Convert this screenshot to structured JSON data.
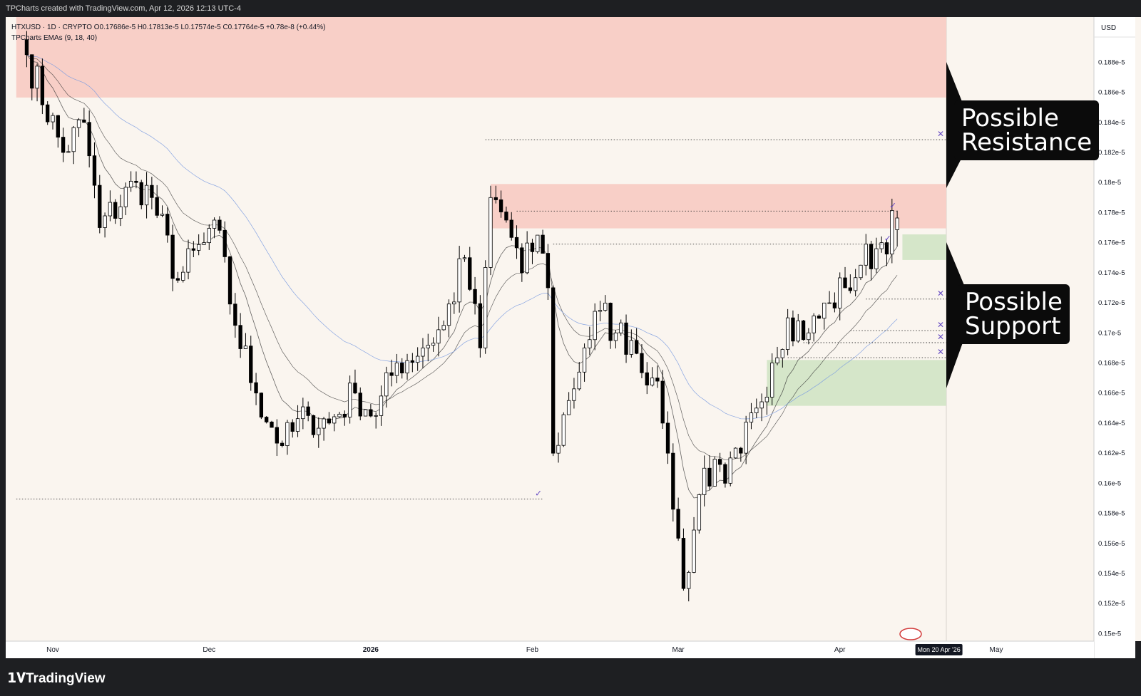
{
  "header": {
    "caption": "TPCharts created with TradingView.com, Apr 12, 2026 12:13 UTC-4"
  },
  "legend": {
    "symbol_line": "HTXUSD · 1D · CRYPTO  O0.17686e-5  H0.17813e-5  L0.17574e-5  C0.17764e-5  +0.78e-8 (+0.44%)",
    "indicator_line": "TPCharts EMAs (9, 18, 40)"
  },
  "price_axis": {
    "currency": "USD"
  },
  "time_axis": {
    "cursor_label": "Mon 20 Apr '26"
  },
  "annotations": {
    "resistance_label": [
      "Possible",
      "Resistance"
    ],
    "support_label": [
      "Possible",
      "Support"
    ]
  },
  "footer": {
    "brand": "TradingView",
    "logo_icon": "tradingview-logo-icon"
  },
  "colors": {
    "background": "#faf5ef",
    "bull": "#ffffff",
    "bear": "#000000",
    "resistance_zone": "#f8cfc7",
    "support_zone": "#d5e6c9",
    "ema_fast": "#333333",
    "ema_slow": "#7a9be0",
    "marker": "#6a4fc4"
  },
  "chart_data": {
    "type": "candlestick",
    "y_scale": "price x 1e5",
    "ylim": [
      0.1495,
      0.191
    ],
    "y_ticks": [
      0.15,
      0.152,
      0.154,
      0.156,
      0.158,
      0.16,
      0.162,
      0.164,
      0.166,
      0.168,
      0.17,
      0.172,
      0.174,
      0.176,
      0.178,
      0.18,
      0.182,
      0.184,
      0.186,
      0.188
    ],
    "y_tick_suffix": "e-5",
    "x_start": "2025-10-25",
    "x_end": "2026-05-16",
    "x_tick_labels": [
      {
        "label": "Nov",
        "date": "2025-11-01",
        "bold": false
      },
      {
        "label": "Dec",
        "date": "2025-12-01",
        "bold": false
      },
      {
        "label": "2026",
        "date": "2026-01-01",
        "bold": true
      },
      {
        "label": "Feb",
        "date": "2026-02-01",
        "bold": false
      },
      {
        "label": "Mar",
        "date": "2026-03-01",
        "bold": false
      },
      {
        "label": "Apr",
        "date": "2026-04-01",
        "bold": false
      },
      {
        "label": "May",
        "date": "2026-05-01",
        "bold": false
      }
    ],
    "ohlc_anchor_dates": [
      "2025-10-27",
      "2025-11-03",
      "2025-11-07",
      "2025-11-10",
      "2025-11-17",
      "2025-11-20",
      "2025-11-25",
      "2025-11-30",
      "2025-12-02",
      "2025-12-06",
      "2025-12-10",
      "2025-12-15",
      "2025-12-20",
      "2025-12-24",
      "2025-12-29",
      "2026-01-02",
      "2026-01-06",
      "2026-01-11",
      "2026-01-15",
      "2026-01-19",
      "2026-01-22",
      "2026-01-24",
      "2026-01-27",
      "2026-01-30",
      "2026-02-02",
      "2026-02-04",
      "2026-02-05",
      "2026-02-08",
      "2026-02-11",
      "2026-02-14",
      "2026-02-17",
      "2026-02-20",
      "2026-02-24",
      "2026-02-26",
      "2026-02-27",
      "2026-03-02",
      "2026-03-06",
      "2026-03-10",
      "2026-03-13",
      "2026-03-16",
      "2026-03-19",
      "2026-03-22",
      "2026-03-26",
      "2026-03-30",
      "2026-04-02",
      "2026-04-05",
      "2026-04-09",
      "2026-04-12"
    ],
    "close_anchor_values": [
      0.1885,
      0.182,
      0.184,
      0.177,
      0.18,
      0.179,
      0.1735,
      0.176,
      0.1775,
      0.1705,
      0.166,
      0.1625,
      0.1645,
      0.164,
      0.166,
      0.1645,
      0.168,
      0.169,
      0.1705,
      0.175,
      0.169,
      0.179,
      0.1775,
      0.174,
      0.1765,
      0.173,
      0.162,
      0.1655,
      0.169,
      0.1715,
      0.17,
      0.1695,
      0.167,
      0.164,
      0.162,
      0.153,
      0.161,
      0.16,
      0.162,
      0.165,
      0.168,
      0.171,
      0.17,
      0.172,
      0.173,
      0.1745,
      0.176,
      0.1776
    ],
    "resistance_zones": [
      {
        "low": 0.18565,
        "high": 0.191,
        "from": "2025-10-25",
        "to": "right_edge"
      },
      {
        "low": 0.17695,
        "high": 0.1799,
        "from": "2026-01-24",
        "to": "right_edge"
      }
    ],
    "support_zones": [
      {
        "low": 0.17485,
        "high": 0.17655,
        "from": "2026-04-13",
        "to": "right_edge"
      },
      {
        "low": 0.16515,
        "high": 0.1682,
        "from": "2026-03-18",
        "to": "right_edge"
      }
    ],
    "liquidity_levels": [
      {
        "price": 0.18285,
        "from": "2026-01-23",
        "status": "open"
      },
      {
        "price": 0.1781,
        "from": "2026-01-29",
        "to": "2026-04-12",
        "status": "swept"
      },
      {
        "price": 0.1759,
        "from": "2026-02-05",
        "to": "2026-04-11",
        "status": "swept"
      },
      {
        "price": 0.17225,
        "from": "2026-04-06",
        "status": "open"
      },
      {
        "price": 0.17015,
        "from": "2026-04-03",
        "status": "open"
      },
      {
        "price": 0.16935,
        "from": "2026-03-25",
        "status": "open"
      },
      {
        "price": 0.16835,
        "from": "2026-03-22",
        "status": "open"
      },
      {
        "price": 0.15895,
        "from": "2025-10-25",
        "to": "2026-02-03",
        "status": "swept"
      }
    ],
    "emas": [
      9,
      18,
      40
    ]
  }
}
